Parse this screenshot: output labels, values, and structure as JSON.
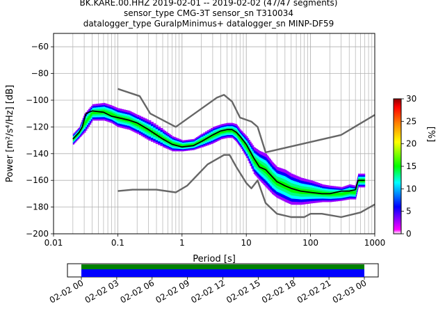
{
  "title_lines": [
    "BK.KARE.00.HHZ   2019-02-01 -- 2019-02-02  (47/47 segments)",
    "sensor_type CMG-3T sensor_sn T310034",
    "datalogger_type GuralpMinimus+ datalogger_sn MINP-DF59"
  ],
  "chart_data": {
    "type": "heatmap",
    "xlabel": "Period [s]",
    "ylabel": "Power [m²/s⁴/Hz] [dB]",
    "xscale": "log",
    "xlim": [
      0.01,
      1000
    ],
    "ylim": [
      -200,
      -50
    ],
    "xticks": [
      0.01,
      0.1,
      1,
      10,
      100,
      1000
    ],
    "xtick_labels": [
      "0.01",
      "0.1",
      "1",
      "10",
      "100",
      "1000"
    ],
    "yticks": [
      -200,
      -180,
      -160,
      -140,
      -120,
      -100,
      -80,
      -60
    ],
    "ytick_labels": [
      "−200",
      "−180",
      "−160",
      "−140",
      "−120",
      "−100",
      "−80",
      "−60"
    ],
    "grid": true,
    "colorbar": {
      "label": "[%]",
      "range": [
        0,
        30
      ],
      "ticks": [
        0,
        5,
        10,
        15,
        20,
        25,
        30
      ],
      "tick_labels": [
        "0",
        "5",
        "10",
        "15",
        "20",
        "25",
        "30"
      ],
      "colors": [
        "#ffffff",
        "#ff00ff",
        "#0000ff",
        "#00ffff",
        "#00ff00",
        "#ffff00",
        "#ff7f00",
        "#ff0000",
        "#8b0000"
      ]
    },
    "series": [
      {
        "name": "",
        "color": "#000000",
        "points": [
          [
            0.02,
            -129
          ],
          [
            0.025,
            -124
          ],
          [
            0.028,
            -120
          ],
          [
            0.032,
            -110
          ],
          [
            0.04,
            -108
          ],
          [
            0.06,
            -109
          ],
          [
            0.08,
            -112
          ],
          [
            0.1,
            -113
          ],
          [
            0.15,
            -115
          ],
          [
            0.2,
            -117
          ],
          [
            0.3,
            -122
          ],
          [
            0.5,
            -129
          ],
          [
            0.7,
            -133
          ],
          [
            1.0,
            -135
          ],
          [
            1.5,
            -134
          ],
          [
            2,
            -131
          ],
          [
            3,
            -126
          ],
          [
            4,
            -123
          ],
          [
            5,
            -122
          ],
          [
            6,
            -122
          ],
          [
            7,
            -124
          ],
          [
            8,
            -127
          ],
          [
            10,
            -133
          ],
          [
            13,
            -143
          ],
          [
            16,
            -150
          ],
          [
            20,
            -152
          ],
          [
            25,
            -157
          ],
          [
            30,
            -161
          ],
          [
            40,
            -164
          ],
          [
            50,
            -166
          ],
          [
            70,
            -168
          ],
          [
            100,
            -169
          ],
          [
            150,
            -170
          ],
          [
            200,
            -170
          ],
          [
            300,
            -168
          ],
          [
            400,
            -168
          ],
          [
            500,
            -167
          ],
          [
            550,
            -160
          ],
          [
            700,
            -160
          ]
        ]
      },
      {
        "name": "",
        "color": "#666666",
        "points": [
          [
            0.1,
            -91.5
          ],
          [
            0.22,
            -97
          ],
          [
            0.32,
            -110
          ],
          [
            0.8,
            -120
          ],
          [
            3.5,
            -98
          ],
          [
            4.5,
            -96
          ],
          [
            6,
            -101
          ],
          [
            8,
            -113
          ],
          [
            12,
            -116
          ],
          [
            15,
            -120
          ],
          [
            20,
            -139
          ],
          [
            300,
            -126
          ],
          [
            1000,
            -111
          ]
        ]
      },
      {
        "name": "",
        "color": "#666666",
        "points": [
          [
            0.1,
            -168
          ],
          [
            0.17,
            -167
          ],
          [
            0.4,
            -167
          ],
          [
            0.8,
            -169
          ],
          [
            1.2,
            -164
          ],
          [
            2.5,
            -148
          ],
          [
            4.5,
            -141
          ],
          [
            5.5,
            -141
          ],
          [
            7,
            -150
          ],
          [
            10,
            -162
          ],
          [
            12,
            -166
          ],
          [
            15,
            -160
          ],
          [
            20,
            -177
          ],
          [
            30,
            -185
          ],
          [
            50,
            -187.5
          ],
          [
            80,
            -187.5
          ],
          [
            100,
            -185
          ],
          [
            150,
            -185
          ],
          [
            300,
            -187.5
          ],
          [
            600,
            -184
          ],
          [
            1000,
            -178
          ]
        ]
      }
    ],
    "histogram_band": [
      [
        0.02,
        -133,
        -125
      ],
      [
        0.025,
        -128,
        -120
      ],
      [
        0.03,
        -124,
        -110
      ],
      [
        0.04,
        -115,
        -103
      ],
      [
        0.06,
        -115,
        -102
      ],
      [
        0.08,
        -117,
        -104
      ],
      [
        0.1,
        -120,
        -106
      ],
      [
        0.15,
        -122,
        -108
      ],
      [
        0.2,
        -125,
        -111
      ],
      [
        0.3,
        -130,
        -115
      ],
      [
        0.5,
        -135,
        -122
      ],
      [
        0.7,
        -138,
        -127
      ],
      [
        1.0,
        -138,
        -130
      ],
      [
        1.5,
        -137,
        -129
      ],
      [
        2,
        -135,
        -125
      ],
      [
        3,
        -132,
        -120
      ],
      [
        4,
        -129,
        -118
      ],
      [
        5,
        -128,
        -117
      ],
      [
        6,
        -128,
        -117
      ],
      [
        7,
        -131,
        -118
      ],
      [
        8,
        -135,
        -122
      ],
      [
        10,
        -143,
        -127
      ],
      [
        13,
        -155,
        -135
      ],
      [
        16,
        -160,
        -138
      ],
      [
        20,
        -165,
        -140
      ],
      [
        25,
        -170,
        -146
      ],
      [
        30,
        -173,
        -150
      ],
      [
        40,
        -176,
        -152
      ],
      [
        50,
        -178,
        -155
      ],
      [
        70,
        -178,
        -158
      ],
      [
        100,
        -177,
        -160
      ],
      [
        150,
        -176,
        -163
      ],
      [
        200,
        -176,
        -164
      ],
      [
        300,
        -175,
        -165
      ],
      [
        400,
        -174,
        -163
      ],
      [
        500,
        -174,
        -164
      ],
      [
        550,
        -165,
        -155
      ],
      [
        700,
        -165,
        -155
      ]
    ],
    "time_axis": {
      "tick_labels": [
        "02-02 00",
        "02-02 03",
        "02-02 06",
        "02-02 09",
        "02-02 12",
        "02-02 15",
        "02-02 18",
        "02-02 21",
        "02-03 00"
      ],
      "coverage_colors": [
        "#008000",
        "#0000ff"
      ]
    }
  }
}
